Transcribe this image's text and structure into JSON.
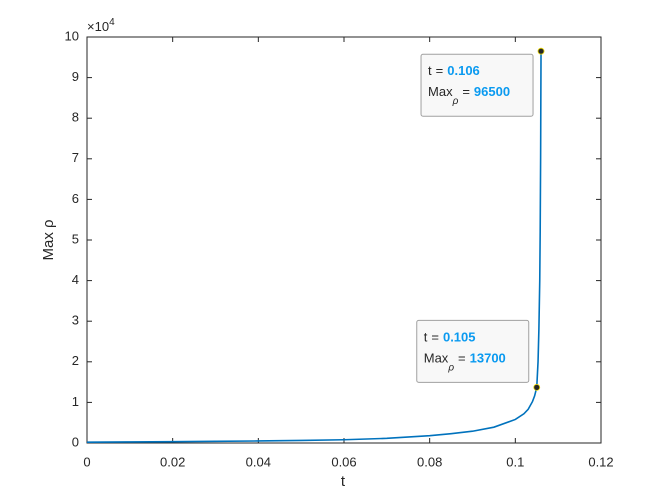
{
  "chart_data": {
    "type": "line",
    "x_label": "t",
    "y_label": "Max ρ",
    "y_multiplier": {
      "base": "×10",
      "exponent": "4"
    },
    "x": [
      0,
      0.01,
      0.02,
      0.03,
      0.04,
      0.05,
      0.06,
      0.07,
      0.08,
      0.085,
      0.09,
      0.095,
      0.1,
      0.102,
      0.103,
      0.104,
      0.1045,
      0.105,
      0.1053,
      0.1055,
      0.1057,
      0.1058,
      0.1059,
      0.106
    ],
    "values": [
      200,
      260,
      330,
      410,
      500,
      620,
      800,
      1150,
      1800,
      2300,
      2900,
      3900,
      5800,
      7200,
      8300,
      10200,
      11600,
      13700,
      20000,
      28000,
      40000,
      52000,
      70000,
      96500
    ],
    "color": "#0072bd",
    "xlim": [
      0,
      0.12
    ],
    "xticks": [
      0,
      0.02,
      0.04,
      0.06,
      0.08,
      0.1,
      0.12
    ],
    "ylim": [
      0,
      100000
    ],
    "yticks": [
      {
        "value": 0,
        "label": "0"
      },
      {
        "value": 10000,
        "label": "1"
      },
      {
        "value": 20000,
        "label": "2"
      },
      {
        "value": 30000,
        "label": "3"
      },
      {
        "value": 40000,
        "label": "4"
      },
      {
        "value": 50000,
        "label": "5"
      },
      {
        "value": 60000,
        "label": "6"
      },
      {
        "value": 70000,
        "label": "7"
      },
      {
        "value": 80000,
        "label": "8"
      },
      {
        "value": 90000,
        "label": "9"
      },
      {
        "value": 100000,
        "label": "10"
      }
    ],
    "grid": false,
    "datatip_separator": "=",
    "annotations": [
      {
        "x": 0.106,
        "y": 96500,
        "x_label": "t",
        "y_label": "Max",
        "y_label_sub": "ρ",
        "value_color": "#0a9af0"
      },
      {
        "x": 0.105,
        "y": 13700,
        "x_label": "t",
        "y_label": "Max",
        "y_label_sub": "ρ",
        "value_color": "#0a9af0"
      }
    ]
  }
}
